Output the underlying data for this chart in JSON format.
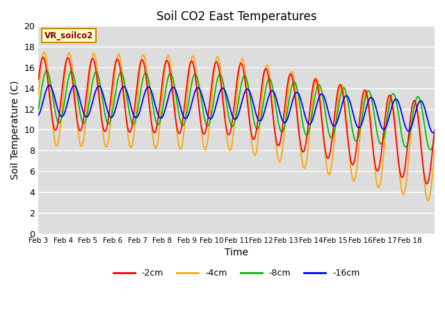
{
  "title": "Soil CO2 East Temperatures",
  "xlabel": "Time",
  "ylabel": "Soil Temperature (C)",
  "ylim": [
    0,
    20
  ],
  "bg_color": "#dddddd",
  "grid_color": "#ffffff",
  "line_colors": {
    "-2cm": "#ff0000",
    "-4cm": "#ffa500",
    "-8cm": "#00bb00",
    "-16cm": "#0000ff"
  },
  "legend_label": "VR_soilco2",
  "legend_box_color": "#ffffcc",
  "legend_box_edge": "#cc8800",
  "x_tick_labels": [
    "Feb 3",
    "Feb 4",
    "Feb 5",
    "Feb 6",
    "Feb 7",
    "Feb 8",
    "Feb 9",
    "Feb 10",
    "Feb 11",
    "Feb 12",
    "Feb 13",
    "Feb 14",
    "Feb 15",
    "Feb 16",
    "Feb 17",
    "Feb 18"
  ],
  "series_labels": [
    "-2cm",
    "-4cm",
    "-8cm",
    "-16cm"
  ]
}
